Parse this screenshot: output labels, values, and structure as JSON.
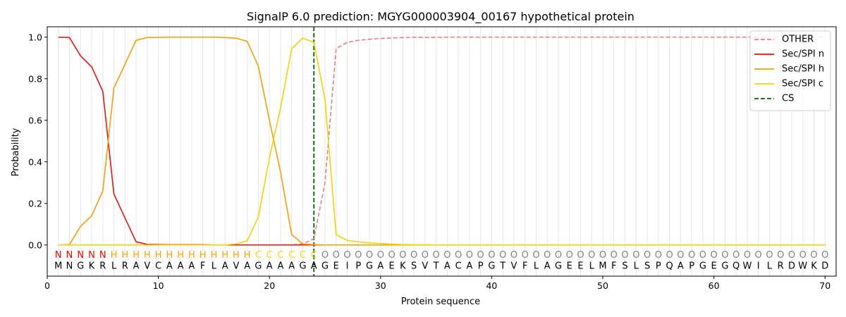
{
  "chart_data": {
    "type": "line",
    "title": "SignalP 6.0 prediction: MGYG000003904_00167 hypothetical protein",
    "xlabel": "Protein sequence",
    "ylabel": "Probability",
    "xlim": [
      0,
      71
    ],
    "ylim": [
      -0.15,
      1.05
    ],
    "x_ticks": [
      0,
      10,
      20,
      30,
      40,
      50,
      60,
      70
    ],
    "y_ticks": [
      0.0,
      0.2,
      0.4,
      0.6,
      0.8,
      1.0
    ],
    "x_tick_labels": [
      "0",
      "10",
      "20",
      "30",
      "40",
      "50",
      "60",
      "70"
    ],
    "y_tick_labels": [
      "0.0",
      "0.2",
      "0.4",
      "0.6",
      "0.8",
      "1.0"
    ],
    "grid": "vertical lines at each residue",
    "legend_position": "top-right",
    "sequence": "MNGKRLRAVCAAAFLAVAGAAAGAGEIPGAEKSVTACAPGTVFLAGEELMFSLSPQAPGEGQWILRDWKD",
    "labels": "NNNNNHHHHHHHHHHHHHCCCCCCOOOOOOOOOOOOOOOOOOOOOOOOOOOOOOOOOOOOOOOOOOOOOO",
    "label_colors": {
      "N": "#ff0000",
      "H": "#ffa500",
      "C": "#ffd700",
      "O": "#808080"
    },
    "cleavage_site": 24,
    "series": [
      {
        "name": "OTHER",
        "color": "#e88080",
        "dash": "dashed",
        "values": [
          0,
          0,
          0,
          0,
          0,
          0,
          0,
          0,
          0,
          0,
          0,
          0,
          0,
          0,
          0,
          0,
          0,
          0,
          0,
          0,
          0,
          0,
          0.005,
          0.03,
          0.3,
          0.945,
          0.975,
          0.985,
          0.99,
          0.994,
          0.996,
          0.998,
          0.999,
          0.999,
          0.999,
          1,
          1,
          1,
          1,
          1,
          1,
          1,
          1,
          1,
          1,
          1,
          1,
          1,
          1,
          1,
          1,
          1,
          1,
          1,
          1,
          1,
          1,
          1,
          1,
          1,
          1,
          1,
          1,
          1,
          1,
          1,
          1,
          1,
          1,
          1
        ]
      },
      {
        "name": "Sec/SPI n",
        "color": "#ee1111",
        "dash": "solid",
        "values": [
          1.0,
          0.998,
          0.91,
          0.857,
          0.74,
          0.245,
          0.13,
          0.015,
          0.003,
          0.002,
          0.001,
          0.001,
          0.001,
          0.001,
          0,
          0,
          0,
          0,
          0,
          0,
          0,
          0,
          0,
          0,
          0,
          0,
          0,
          0,
          0,
          0,
          0,
          0,
          0,
          0,
          0,
          0,
          0,
          0,
          0,
          0,
          0,
          0,
          0,
          0,
          0,
          0,
          0,
          0,
          0,
          0,
          0,
          0,
          0,
          0,
          0,
          0,
          0,
          0,
          0,
          0,
          0,
          0,
          0,
          0,
          0,
          0,
          0,
          0,
          0,
          0
        ]
      },
      {
        "name": "Sec/SPI h",
        "color": "#f5a000",
        "dash": "solid",
        "values": [
          0,
          0.002,
          0.09,
          0.14,
          0.26,
          0.755,
          0.87,
          0.985,
          0.998,
          0.999,
          1.0,
          1.0,
          1.0,
          1.0,
          1.0,
          0.998,
          0.995,
          0.98,
          0.86,
          0.6,
          0.35,
          0.05,
          0.005,
          0.002,
          0,
          0,
          0,
          0,
          0,
          0,
          0,
          0,
          0,
          0,
          0,
          0,
          0,
          0,
          0,
          0,
          0,
          0,
          0,
          0,
          0,
          0,
          0,
          0,
          0,
          0,
          0,
          0,
          0,
          0,
          0,
          0,
          0,
          0,
          0,
          0,
          0,
          0,
          0,
          0,
          0,
          0,
          0,
          0,
          0,
          0
        ]
      },
      {
        "name": "Sec/SPI c",
        "color": "#f7d200",
        "dash": "solid",
        "values": [
          0,
          0,
          0,
          0,
          0,
          0,
          0,
          0,
          0,
          0,
          0,
          0,
          0,
          0,
          0,
          0,
          0.005,
          0.02,
          0.135,
          0.42,
          0.66,
          0.945,
          0.995,
          0.975,
          0.7,
          0.05,
          0.022,
          0.015,
          0.01,
          0.007,
          0.004,
          0.002,
          0.001,
          0.001,
          0,
          0,
          0,
          0,
          0,
          0,
          0,
          0,
          0,
          0,
          0,
          0,
          0,
          0,
          0,
          0,
          0,
          0,
          0,
          0,
          0,
          0,
          0,
          0,
          0,
          0,
          0,
          0,
          0,
          0,
          0,
          0,
          0,
          0,
          0,
          0
        ]
      }
    ],
    "cs_series": {
      "name": "CS",
      "color": "#006400",
      "dash": "dashed"
    }
  }
}
